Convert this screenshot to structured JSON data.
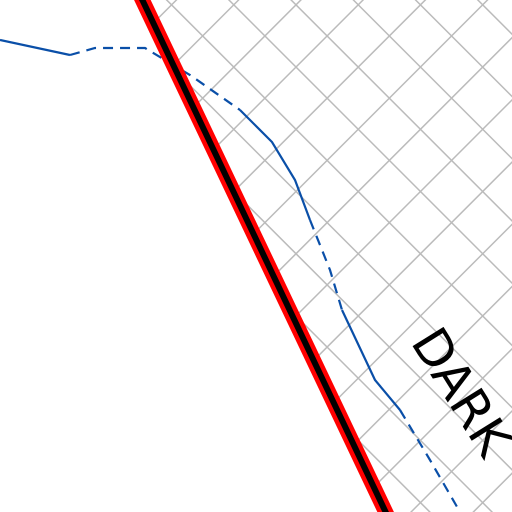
{
  "labels": [
    {
      "text": "DARK"
    }
  ]
}
